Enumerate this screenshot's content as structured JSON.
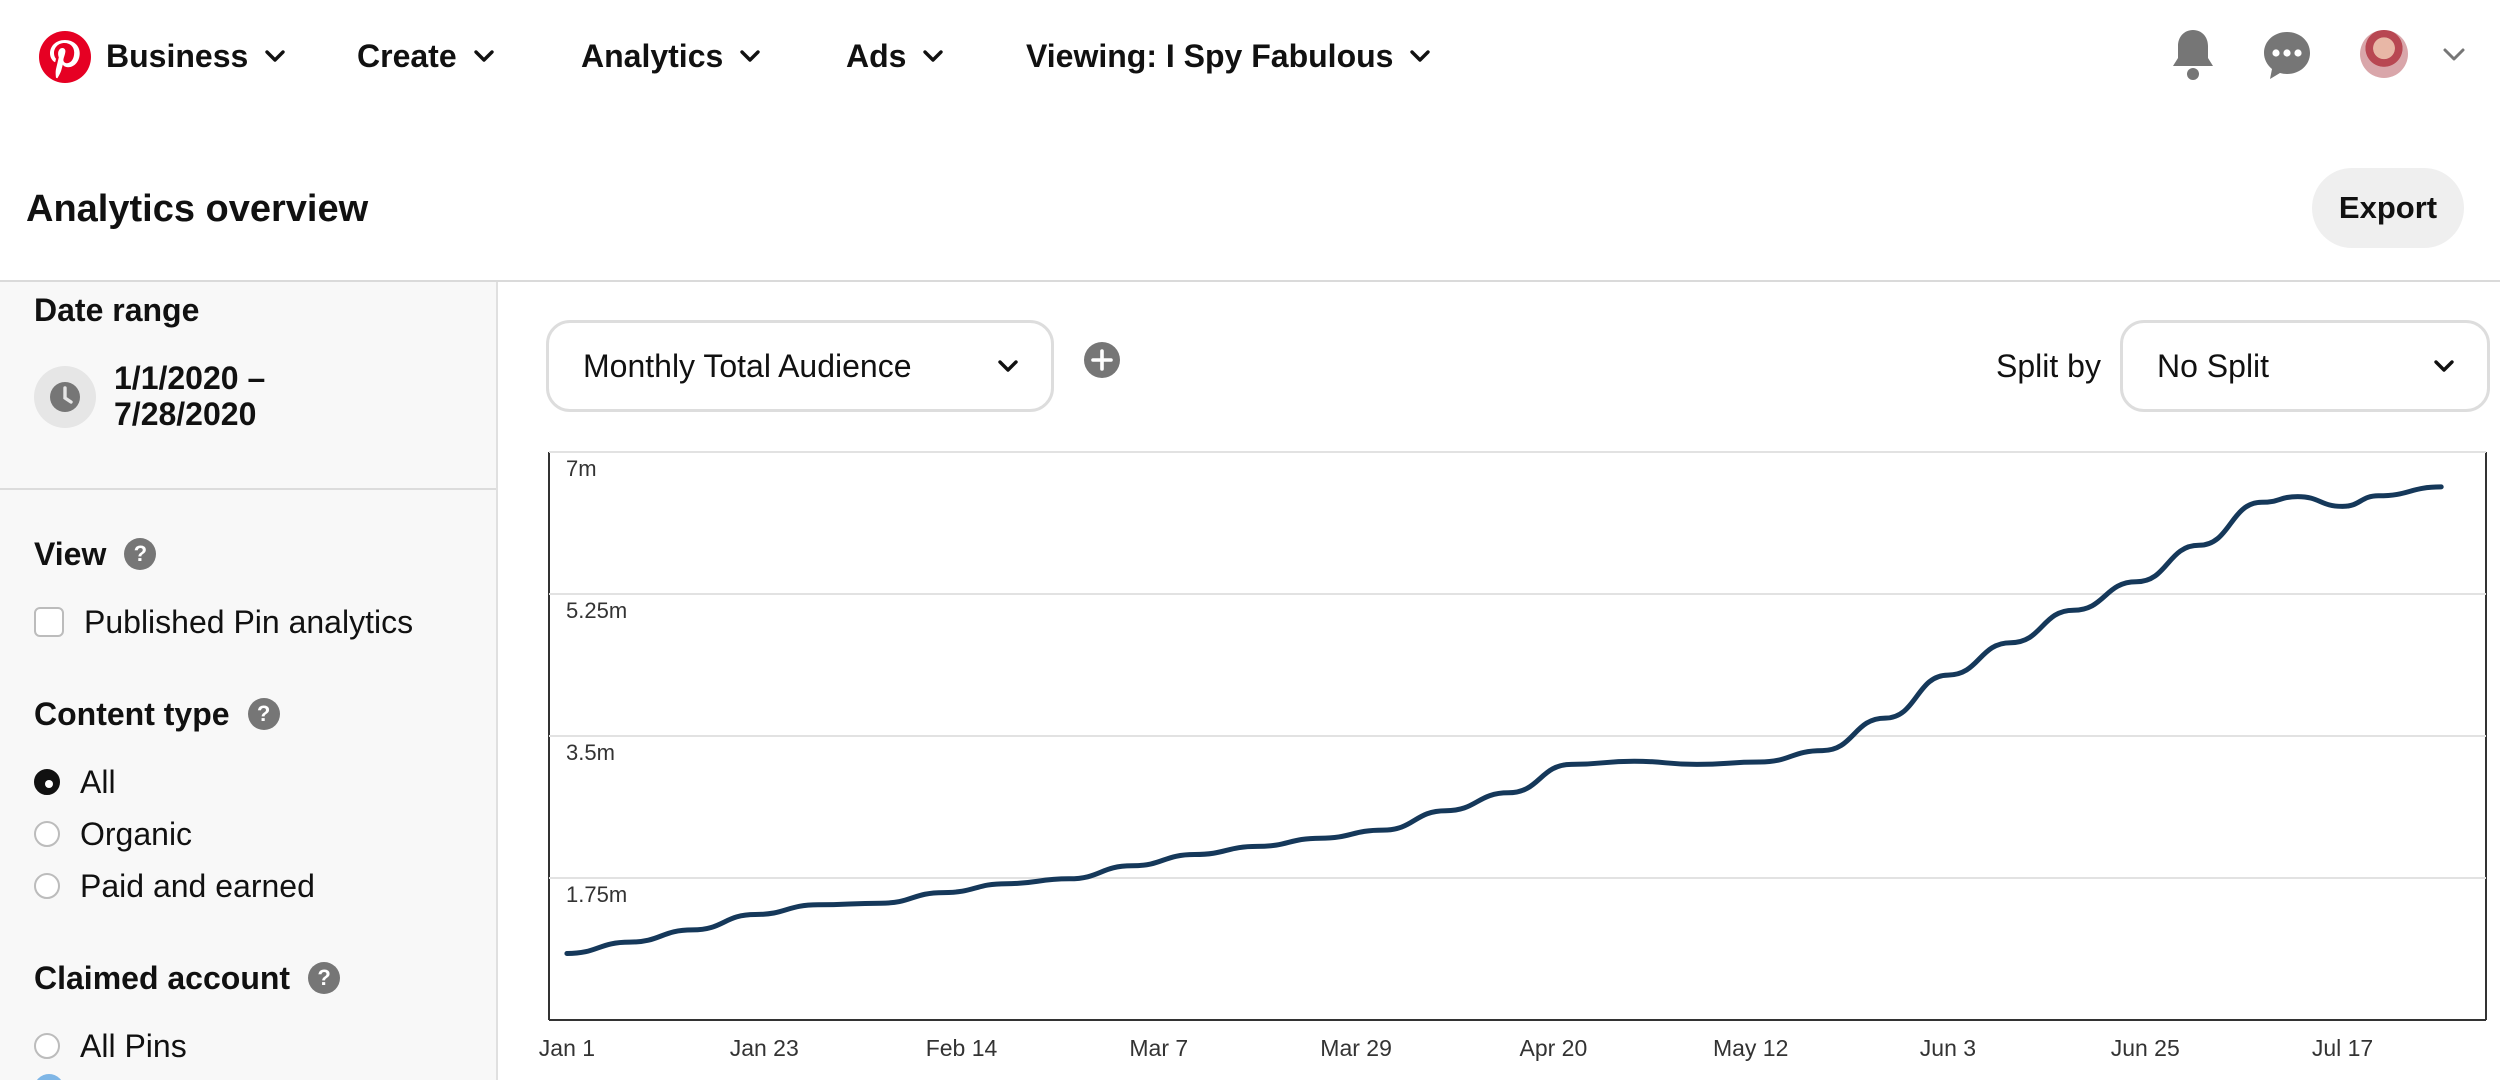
{
  "nav": {
    "logo_icon": "pinterest-logo-icon",
    "items": [
      {
        "label": "Business"
      },
      {
        "label": "Create"
      },
      {
        "label": "Analytics"
      },
      {
        "label": "Ads"
      },
      {
        "label": "Viewing: I Spy Fabulous"
      }
    ],
    "icons": [
      "bell-icon",
      "chat-icon",
      "avatar",
      "chevron-down-icon"
    ],
    "brand_color": "#e60023"
  },
  "header": {
    "title": "Analytics overview",
    "export_label": "Export"
  },
  "sidebar": {
    "date_range_label": "Date range",
    "date_range_value_line1": "1/1/2020 –",
    "date_range_value_line2": "7/28/2020",
    "view_label": "View",
    "view_options": [
      {
        "label": "Published Pin analytics",
        "checked": false
      }
    ],
    "content_type_label": "Content type",
    "content_type_options": [
      {
        "label": "All",
        "selected": true
      },
      {
        "label": "Organic",
        "selected": false
      },
      {
        "label": "Paid and earned",
        "selected": false
      }
    ],
    "claimed_account_label": "Claimed account",
    "claimed_account_options": [
      {
        "label": "All Pins",
        "selected": false
      }
    ]
  },
  "controls": {
    "metric_select": "Monthly Total Audience",
    "split_by_label": "Split by",
    "split_select": "No Split"
  },
  "chart_data": {
    "type": "line",
    "title": "",
    "xlabel": "",
    "ylabel": "",
    "ylim": [
      0,
      7000000
    ],
    "y_tick_labels": [
      "7m",
      "5.25m",
      "3.5m",
      "1.75m"
    ],
    "y_tick_values": [
      7000000,
      5250000,
      3500000,
      1750000
    ],
    "x_tick_labels": [
      "Jan 1",
      "Jan 23",
      "Feb 14",
      "Mar 7",
      "Mar 29",
      "Apr 20",
      "May 12",
      "Jun 3",
      "Jun 25",
      "Jul 17"
    ],
    "grid": true,
    "line_color": "#15385a",
    "series": [
      {
        "name": "",
        "x": [
          "2020-01-01",
          "2020-01-08",
          "2020-01-15",
          "2020-01-22",
          "2020-01-29",
          "2020-02-05",
          "2020-02-12",
          "2020-02-19",
          "2020-02-26",
          "2020-03-04",
          "2020-03-11",
          "2020-03-18",
          "2020-03-25",
          "2020-04-01",
          "2020-04-08",
          "2020-04-15",
          "2020-04-22",
          "2020-04-29",
          "2020-05-06",
          "2020-05-13",
          "2020-05-20",
          "2020-05-27",
          "2020-06-03",
          "2020-06-10",
          "2020-06-17",
          "2020-06-24",
          "2020-07-01",
          "2020-07-08",
          "2020-07-12",
          "2020-07-17",
          "2020-07-21",
          "2020-07-28"
        ],
        "values": [
          820000,
          960000,
          1110000,
          1300000,
          1420000,
          1440000,
          1570000,
          1680000,
          1740000,
          1900000,
          2040000,
          2140000,
          2240000,
          2340000,
          2580000,
          2800000,
          3150000,
          3190000,
          3150000,
          3180000,
          3320000,
          3720000,
          4250000,
          4650000,
          5050000,
          5400000,
          5850000,
          6380000,
          6450000,
          6330000,
          6460000,
          6570000
        ]
      }
    ]
  }
}
